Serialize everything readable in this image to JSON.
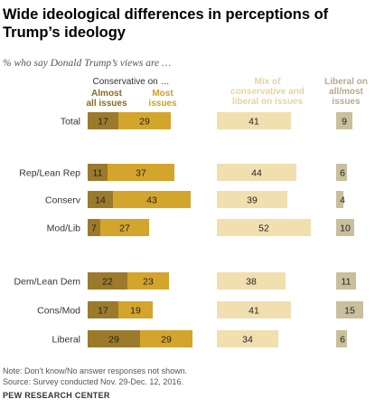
{
  "header": {
    "title": "Wide ideological differences in perceptions of Trump’s ideology",
    "subtitle": "% who say Donald Trump’s views are …"
  },
  "footer": {
    "note": "Note: Don’t know/No answer responses not shown.",
    "source": "Source: Survey conducted Nov. 29-Dec. 12, 2016.",
    "org": "PEW RESEARCH CENTER"
  },
  "chart_data": {
    "type": "bar",
    "group_header": "Conservative on …",
    "column_headers": {
      "almost_all": [
        "Almost",
        "all issues"
      ],
      "most": [
        "Most",
        "issues"
      ],
      "mix": [
        "Mix of",
        "conservative  and",
        "liberal on issues"
      ],
      "liberal": [
        "Liberal on",
        "all/most",
        "issues"
      ]
    },
    "categories": [
      "Total",
      "Rep/Lean Rep",
      "Conserv",
      "Mod/Lib",
      "Dem/Lean Dem",
      "Cons/Mod",
      "Liberal"
    ],
    "series": [
      {
        "name": "Almost all issues",
        "values": [
          17,
          11,
          14,
          7,
          22,
          17,
          29
        ]
      },
      {
        "name": "Most issues",
        "values": [
          29,
          37,
          43,
          27,
          23,
          19,
          29
        ]
      },
      {
        "name": "Mix of conservative and liberal on issues",
        "values": [
          41,
          44,
          39,
          52,
          38,
          41,
          34
        ]
      },
      {
        "name": "Liberal on all/most issues",
        "values": [
          9,
          6,
          4,
          10,
          11,
          15,
          6
        ]
      }
    ],
    "colors": {
      "almost_all": "#9b7a2b",
      "most": "#d4a52c",
      "mix": "#f1dfb0",
      "liberal": "#c9bf9c",
      "almost_all_header": "#8a6a1f",
      "most_header": "#c9a02a",
      "mix_header": "#e6d39f",
      "liberal_header": "#b5ab8c"
    }
  }
}
